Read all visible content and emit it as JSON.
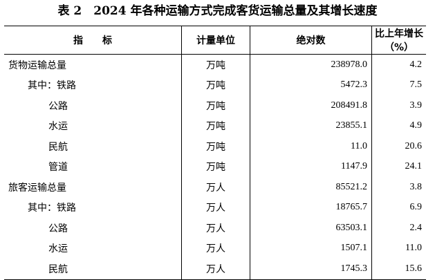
{
  "title": "表 2　2024 年各种运输方式完成客货运输总量及其增长速度",
  "headers": [
    "指　　标",
    "计量单位",
    "绝对数",
    "比上年增长（%）"
  ],
  "rows": [
    {
      "name": "货物运输总量",
      "level": 0,
      "unit": "万吨",
      "value": "238978.0",
      "growth": "4.2"
    },
    {
      "name": "其中：铁路",
      "level": 1,
      "unit": "万吨",
      "value": "5472.3",
      "growth": "7.5"
    },
    {
      "name": "公路",
      "level": 2,
      "unit": "万吨",
      "value": "208491.8",
      "growth": "3.9"
    },
    {
      "name": "水运",
      "level": 2,
      "unit": "万吨",
      "value": "23855.1",
      "growth": "4.9"
    },
    {
      "name": "民航",
      "level": 2,
      "unit": "万吨",
      "value": "11.0",
      "growth": "20.6"
    },
    {
      "name": "管道",
      "level": 2,
      "unit": "万吨",
      "value": "1147.9",
      "growth": "24.1"
    },
    {
      "name": "旅客运输总量",
      "level": 0,
      "unit": "万人",
      "value": "85521.2",
      "growth": "3.8"
    },
    {
      "name": "其中：铁路",
      "level": 1,
      "unit": "万人",
      "value": "18765.7",
      "growth": "6.9"
    },
    {
      "name": "公路",
      "level": 2,
      "unit": "万人",
      "value": "63503.1",
      "growth": "2.4"
    },
    {
      "name": "水运",
      "level": 2,
      "unit": "万人",
      "value": "1507.1",
      "growth": "11.0"
    },
    {
      "name": "民航",
      "level": 2,
      "unit": "万人",
      "value": "1745.3",
      "growth": "15.6"
    }
  ]
}
